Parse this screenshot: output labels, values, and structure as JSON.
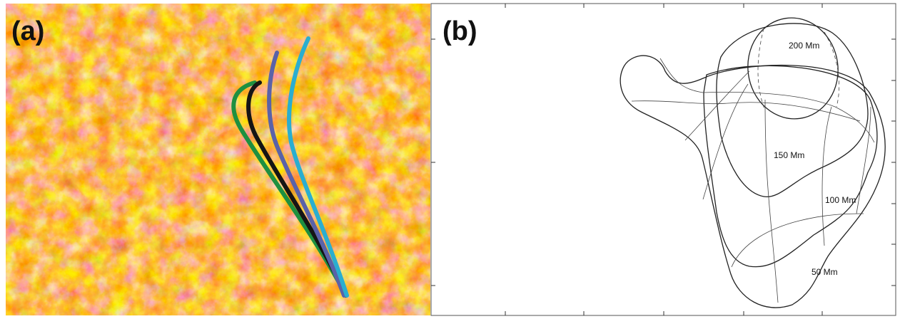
{
  "panels": [
    {
      "label": "(a)"
    },
    {
      "label": "(b)",
      "contour_labels": [
        "200 Mm",
        "150 Mm",
        "100 Mm",
        "50 Mm"
      ]
    }
  ]
}
